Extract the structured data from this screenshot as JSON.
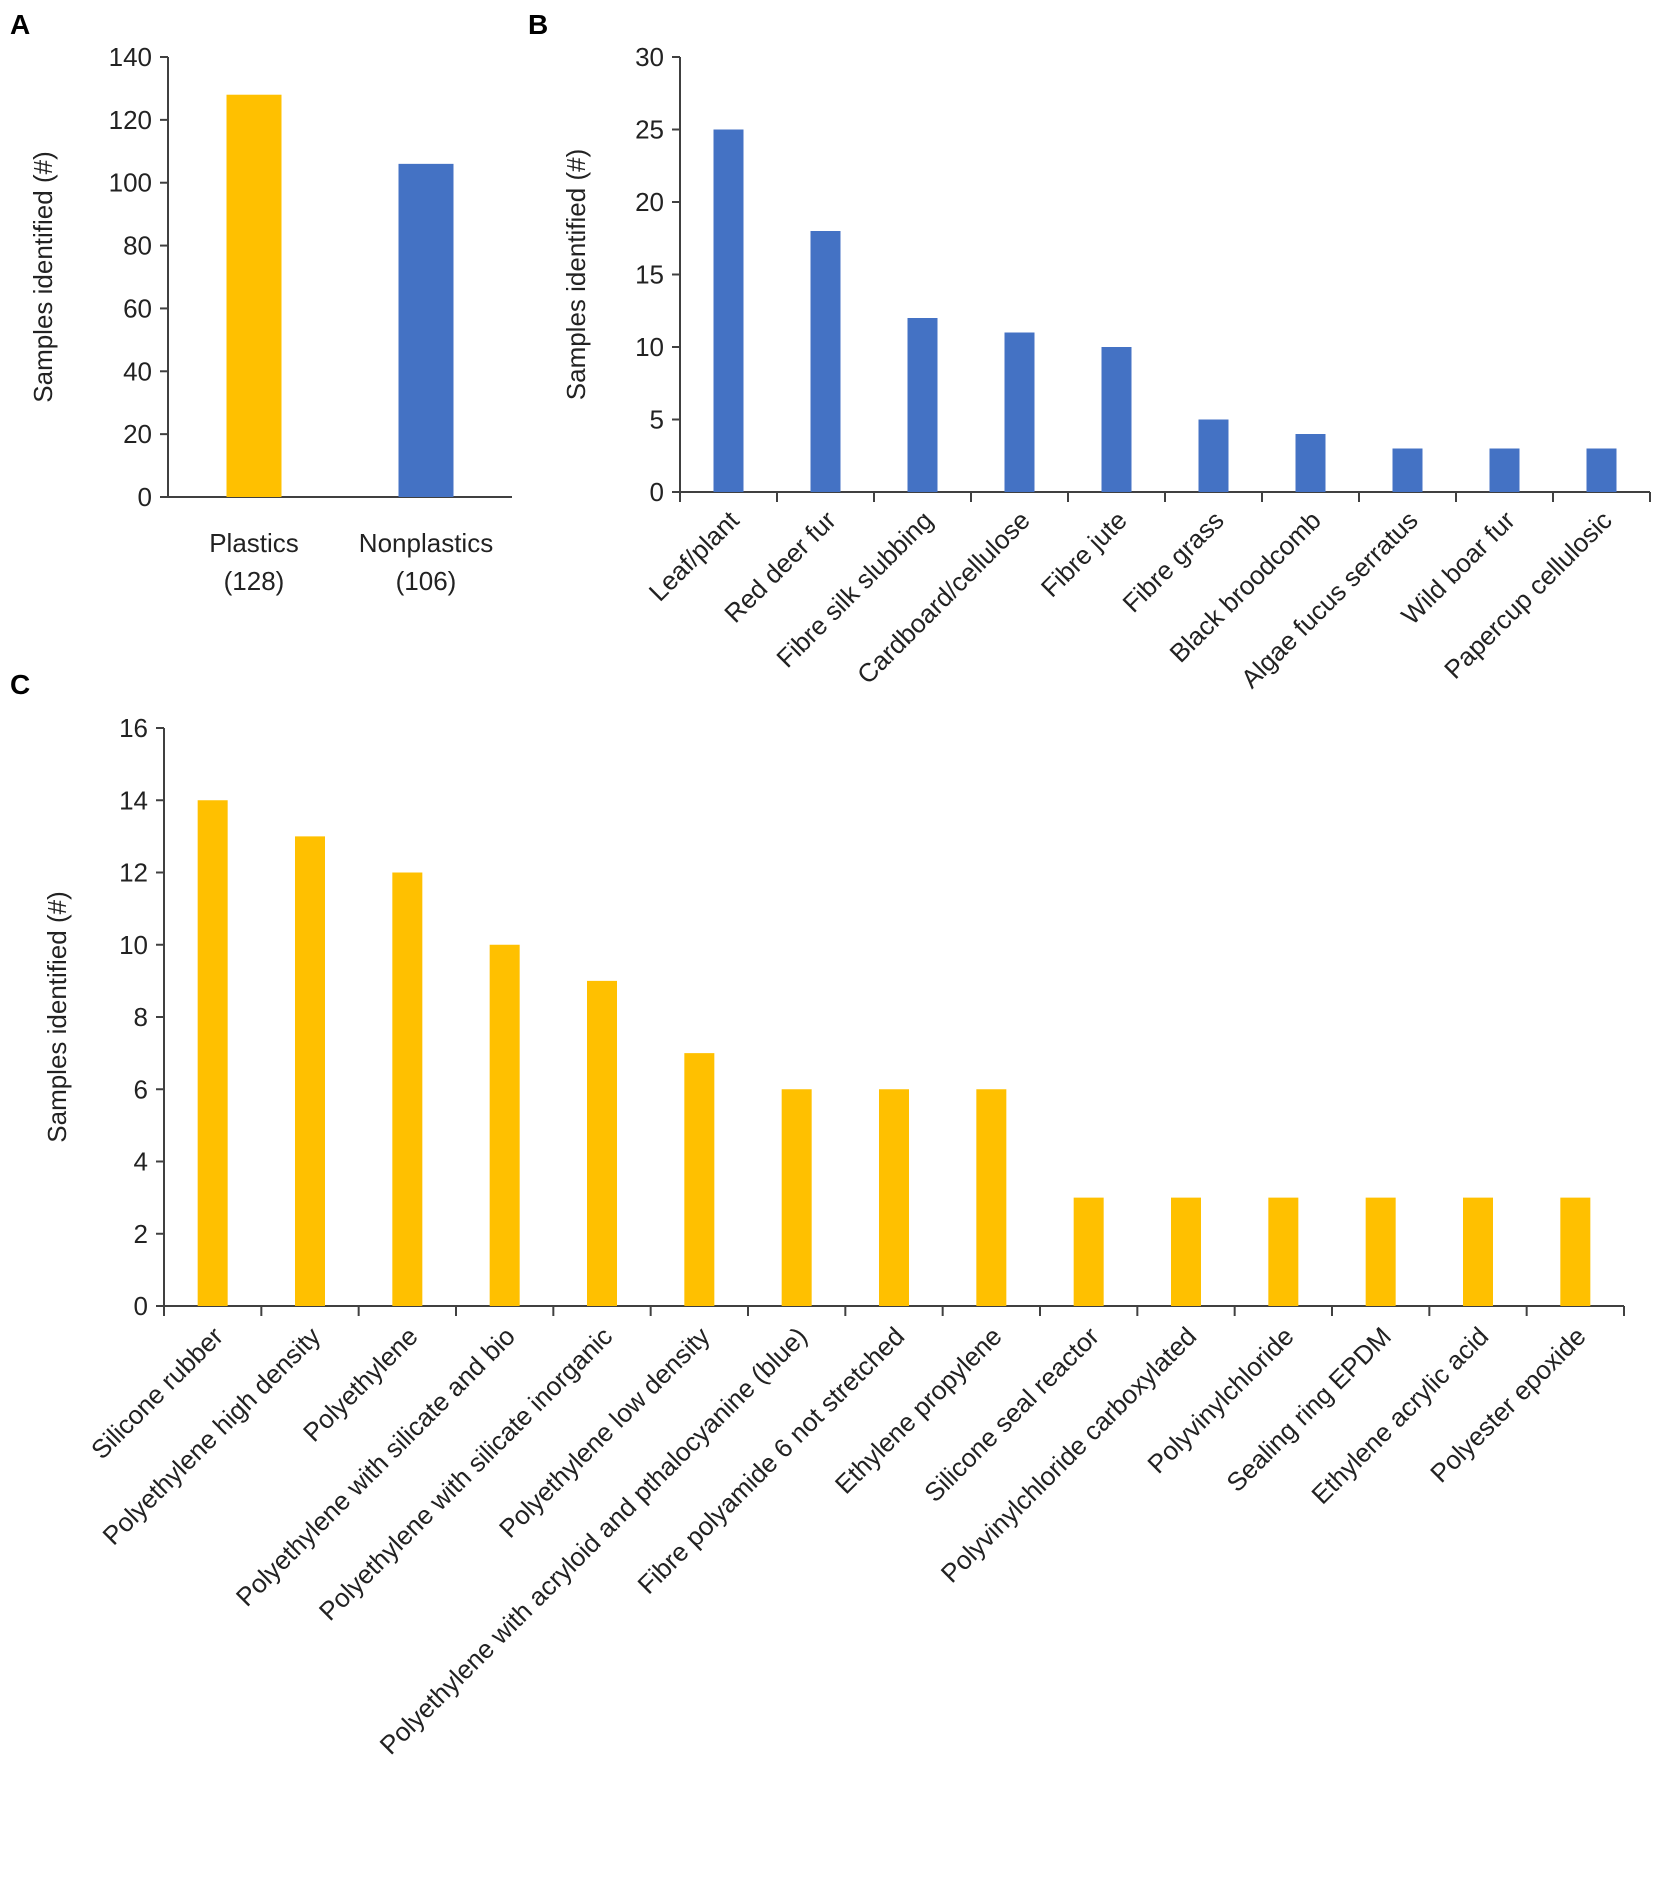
{
  "chart_data": [
    {
      "panel": "A",
      "type": "bar",
      "categories": [
        [
          "Plastics",
          "(128)"
        ],
        [
          "Nonplastics",
          "(106)"
        ]
      ],
      "values": [
        128,
        106
      ],
      "colors": [
        "#FFC000",
        "#4472C4"
      ],
      "ylabel": "Samples identified (#)",
      "ylim": [
        0,
        140
      ],
      "yticks": [
        0,
        20,
        40,
        60,
        80,
        100,
        120,
        140
      ],
      "grid": false
    },
    {
      "panel": "B",
      "type": "bar",
      "categories": [
        "Leaf/plant",
        "Red deer fur",
        "Fibre silk slubbing",
        "Cardboard/cellulose",
        "Fibre jute",
        "Fibre grass",
        "Black broodcomb",
        "Algae fucus serratus",
        "Wild boar fur",
        "Papercup cellulosic"
      ],
      "values": [
        25,
        18,
        12,
        11,
        10,
        5,
        4,
        3,
        3,
        3
      ],
      "color": "#4472C4",
      "ylabel": "Samples identified (#)",
      "ylim": [
        0,
        30
      ],
      "yticks": [
        0,
        5,
        10,
        15,
        20,
        25,
        30
      ],
      "grid": false
    },
    {
      "panel": "C",
      "type": "bar",
      "categories": [
        "Silicone rubber",
        "Polyethylene high density",
        "Polyethylene",
        "Polyethylene with silicate and bio",
        "Polyethylene with silicate inorganic",
        "Polyethylene low density",
        "Polyethylene with acryloid and pthalocyanine (blue)",
        "Fibre polyamide 6 not stretched",
        "Ethylene propylene",
        "Silicone seal reactor",
        "Polyvinylchloride carboxylated",
        "Polyvinylchloride",
        "Sealing ring EPDM",
        "Ethylene acrylic acid",
        "Polyester epoxide"
      ],
      "values": [
        14,
        13,
        12,
        10,
        9,
        7,
        6,
        6,
        6,
        3,
        3,
        3,
        3,
        3,
        3
      ],
      "color": "#FFC000",
      "ylabel": "Samples identified (#)",
      "ylim": [
        0,
        16
      ],
      "yticks": [
        0,
        2,
        4,
        6,
        8,
        10,
        12,
        14,
        16
      ],
      "grid": false
    }
  ]
}
